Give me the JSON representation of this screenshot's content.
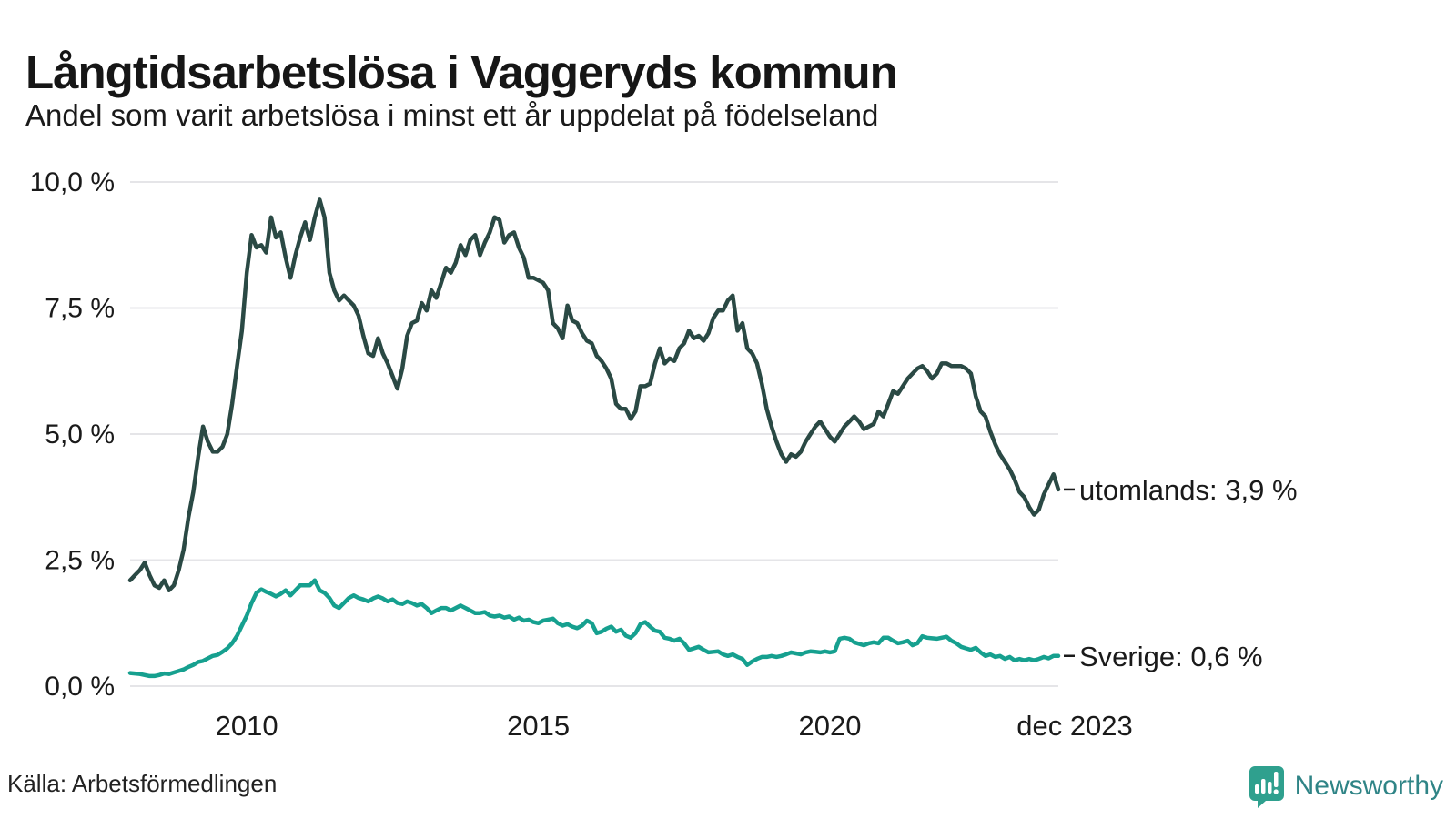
{
  "header": {
    "title": "Långtidsarbetslösa i Vaggeryds kommun",
    "subtitle": "Andel som varit arbetslösa i minst ett år uppdelat på födelseland"
  },
  "chart_data": {
    "type": "line",
    "title": "Långtidsarbetslösa i Vaggeryds kommun",
    "subtitle": "Andel som varit arbetslösa i minst ett år uppdelat på födelseland",
    "x_unit": "month",
    "x_range": [
      "2008-01",
      "2023-12"
    ],
    "ylim": [
      0,
      10
    ],
    "grid": "horizontal",
    "colors": {
      "grid": "#e5e5e8",
      "text": "#1a1a1a"
    },
    "y_ticks": [
      {
        "value": 0,
        "label": "0,0 %"
      },
      {
        "value": 2.5,
        "label": "2,5 %"
      },
      {
        "value": 5,
        "label": "5,0 %"
      },
      {
        "value": 7.5,
        "label": "7,5 %"
      },
      {
        "value": 10,
        "label": "10,0 %"
      }
    ],
    "x_ticks": [
      {
        "month_index": 24,
        "label": "2010"
      },
      {
        "month_index": 84,
        "label": "2015"
      },
      {
        "month_index": 144,
        "label": "2020"
      },
      {
        "month_index": 191,
        "label": "dec 2023"
      }
    ],
    "series": [
      {
        "name": "utomlands",
        "color": "#2a4944",
        "end_label": "utomlands: 3,9 %",
        "end_value": 3.9,
        "values": [
          2.1,
          2.2,
          2.3,
          2.45,
          2.2,
          2.0,
          1.95,
          2.1,
          1.9,
          2.0,
          2.3,
          2.7,
          3.35,
          3.85,
          4.55,
          5.15,
          4.85,
          4.65,
          4.65,
          4.75,
          5.0,
          5.6,
          6.35,
          7.05,
          8.2,
          8.95,
          8.7,
          8.75,
          8.6,
          9.3,
          8.9,
          9.0,
          8.5,
          8.1,
          8.55,
          8.9,
          9.2,
          8.85,
          9.3,
          9.65,
          9.3,
          8.2,
          7.85,
          7.65,
          7.75,
          7.65,
          7.55,
          7.35,
          6.95,
          6.6,
          6.55,
          6.9,
          6.6,
          6.4,
          6.15,
          5.9,
          6.3,
          6.95,
          7.2,
          7.25,
          7.6,
          7.45,
          7.85,
          7.7,
          8.0,
          8.3,
          8.2,
          8.4,
          8.75,
          8.55,
          8.85,
          8.95,
          8.55,
          8.8,
          9.0,
          9.3,
          9.25,
          8.8,
          8.95,
          9.0,
          8.7,
          8.5,
          8.1,
          8.1,
          8.05,
          8.0,
          7.85,
          7.2,
          7.1,
          6.9,
          7.55,
          7.25,
          7.2,
          7.0,
          6.85,
          6.8,
          6.55,
          6.45,
          6.3,
          6.1,
          5.6,
          5.5,
          5.5,
          5.3,
          5.45,
          5.95,
          5.95,
          6.0,
          6.4,
          6.7,
          6.4,
          6.5,
          6.45,
          6.7,
          6.8,
          7.05,
          6.9,
          6.95,
          6.85,
          7.0,
          7.3,
          7.45,
          7.45,
          7.65,
          7.75,
          7.05,
          7.2,
          6.7,
          6.6,
          6.4,
          6.0,
          5.5,
          5.15,
          4.85,
          4.6,
          4.45,
          4.6,
          4.55,
          4.65,
          4.85,
          5.0,
          5.15,
          5.25,
          5.1,
          4.95,
          4.85,
          5.0,
          5.15,
          5.25,
          5.35,
          5.25,
          5.1,
          5.15,
          5.2,
          5.45,
          5.35,
          5.6,
          5.85,
          5.8,
          5.95,
          6.1,
          6.2,
          6.3,
          6.35,
          6.25,
          6.1,
          6.2,
          6.4,
          6.4,
          6.35,
          6.35,
          6.35,
          6.3,
          6.2,
          5.75,
          5.45,
          5.35,
          5.05,
          4.8,
          4.6,
          4.45,
          4.3,
          4.1,
          3.85,
          3.75,
          3.55,
          3.4,
          3.5,
          3.8,
          4.0,
          4.2,
          3.9
        ]
      },
      {
        "name": "Sverige",
        "color": "#16a08f",
        "end_label": "Sverige: 0,6 %",
        "end_value": 0.6,
        "values": [
          0.26,
          0.25,
          0.24,
          0.22,
          0.2,
          0.2,
          0.22,
          0.25,
          0.24,
          0.27,
          0.3,
          0.33,
          0.38,
          0.42,
          0.48,
          0.5,
          0.55,
          0.6,
          0.62,
          0.68,
          0.75,
          0.85,
          1.0,
          1.2,
          1.4,
          1.65,
          1.85,
          1.92,
          1.87,
          1.83,
          1.78,
          1.83,
          1.9,
          1.8,
          1.9,
          2.0,
          2.0,
          2.0,
          2.1,
          1.9,
          1.85,
          1.75,
          1.6,
          1.55,
          1.65,
          1.75,
          1.8,
          1.75,
          1.72,
          1.68,
          1.74,
          1.78,
          1.74,
          1.68,
          1.72,
          1.65,
          1.63,
          1.68,
          1.65,
          1.6,
          1.63,
          1.55,
          1.45,
          1.5,
          1.55,
          1.55,
          1.5,
          1.55,
          1.6,
          1.55,
          1.5,
          1.45,
          1.45,
          1.47,
          1.4,
          1.38,
          1.4,
          1.36,
          1.38,
          1.32,
          1.36,
          1.3,
          1.32,
          1.27,
          1.25,
          1.3,
          1.32,
          1.34,
          1.25,
          1.2,
          1.23,
          1.18,
          1.15,
          1.2,
          1.3,
          1.25,
          1.05,
          1.08,
          1.14,
          1.18,
          1.08,
          1.12,
          1.0,
          0.96,
          1.05,
          1.23,
          1.27,
          1.18,
          1.1,
          1.08,
          0.96,
          0.94,
          0.9,
          0.94,
          0.85,
          0.72,
          0.75,
          0.78,
          0.72,
          0.67,
          0.68,
          0.69,
          0.63,
          0.6,
          0.63,
          0.58,
          0.54,
          0.42,
          0.49,
          0.54,
          0.58,
          0.58,
          0.6,
          0.58,
          0.6,
          0.63,
          0.67,
          0.65,
          0.63,
          0.67,
          0.69,
          0.68,
          0.67,
          0.69,
          0.67,
          0.69,
          0.94,
          0.96,
          0.94,
          0.87,
          0.84,
          0.81,
          0.85,
          0.87,
          0.85,
          0.96,
          0.96,
          0.9,
          0.85,
          0.87,
          0.9,
          0.81,
          0.85,
          0.99,
          0.96,
          0.95,
          0.94,
          0.96,
          0.98,
          0.9,
          0.85,
          0.78,
          0.75,
          0.72,
          0.76,
          0.67,
          0.6,
          0.63,
          0.58,
          0.6,
          0.54,
          0.58,
          0.51,
          0.54,
          0.51,
          0.54,
          0.51,
          0.54,
          0.58,
          0.55,
          0.6,
          0.6
        ]
      }
    ]
  },
  "footer": {
    "source": "Källa: Arbetsförmedlingen",
    "brand": "Newsworthy",
    "brand_color": "#2f8486",
    "logo_color": "#2fa08e"
  }
}
